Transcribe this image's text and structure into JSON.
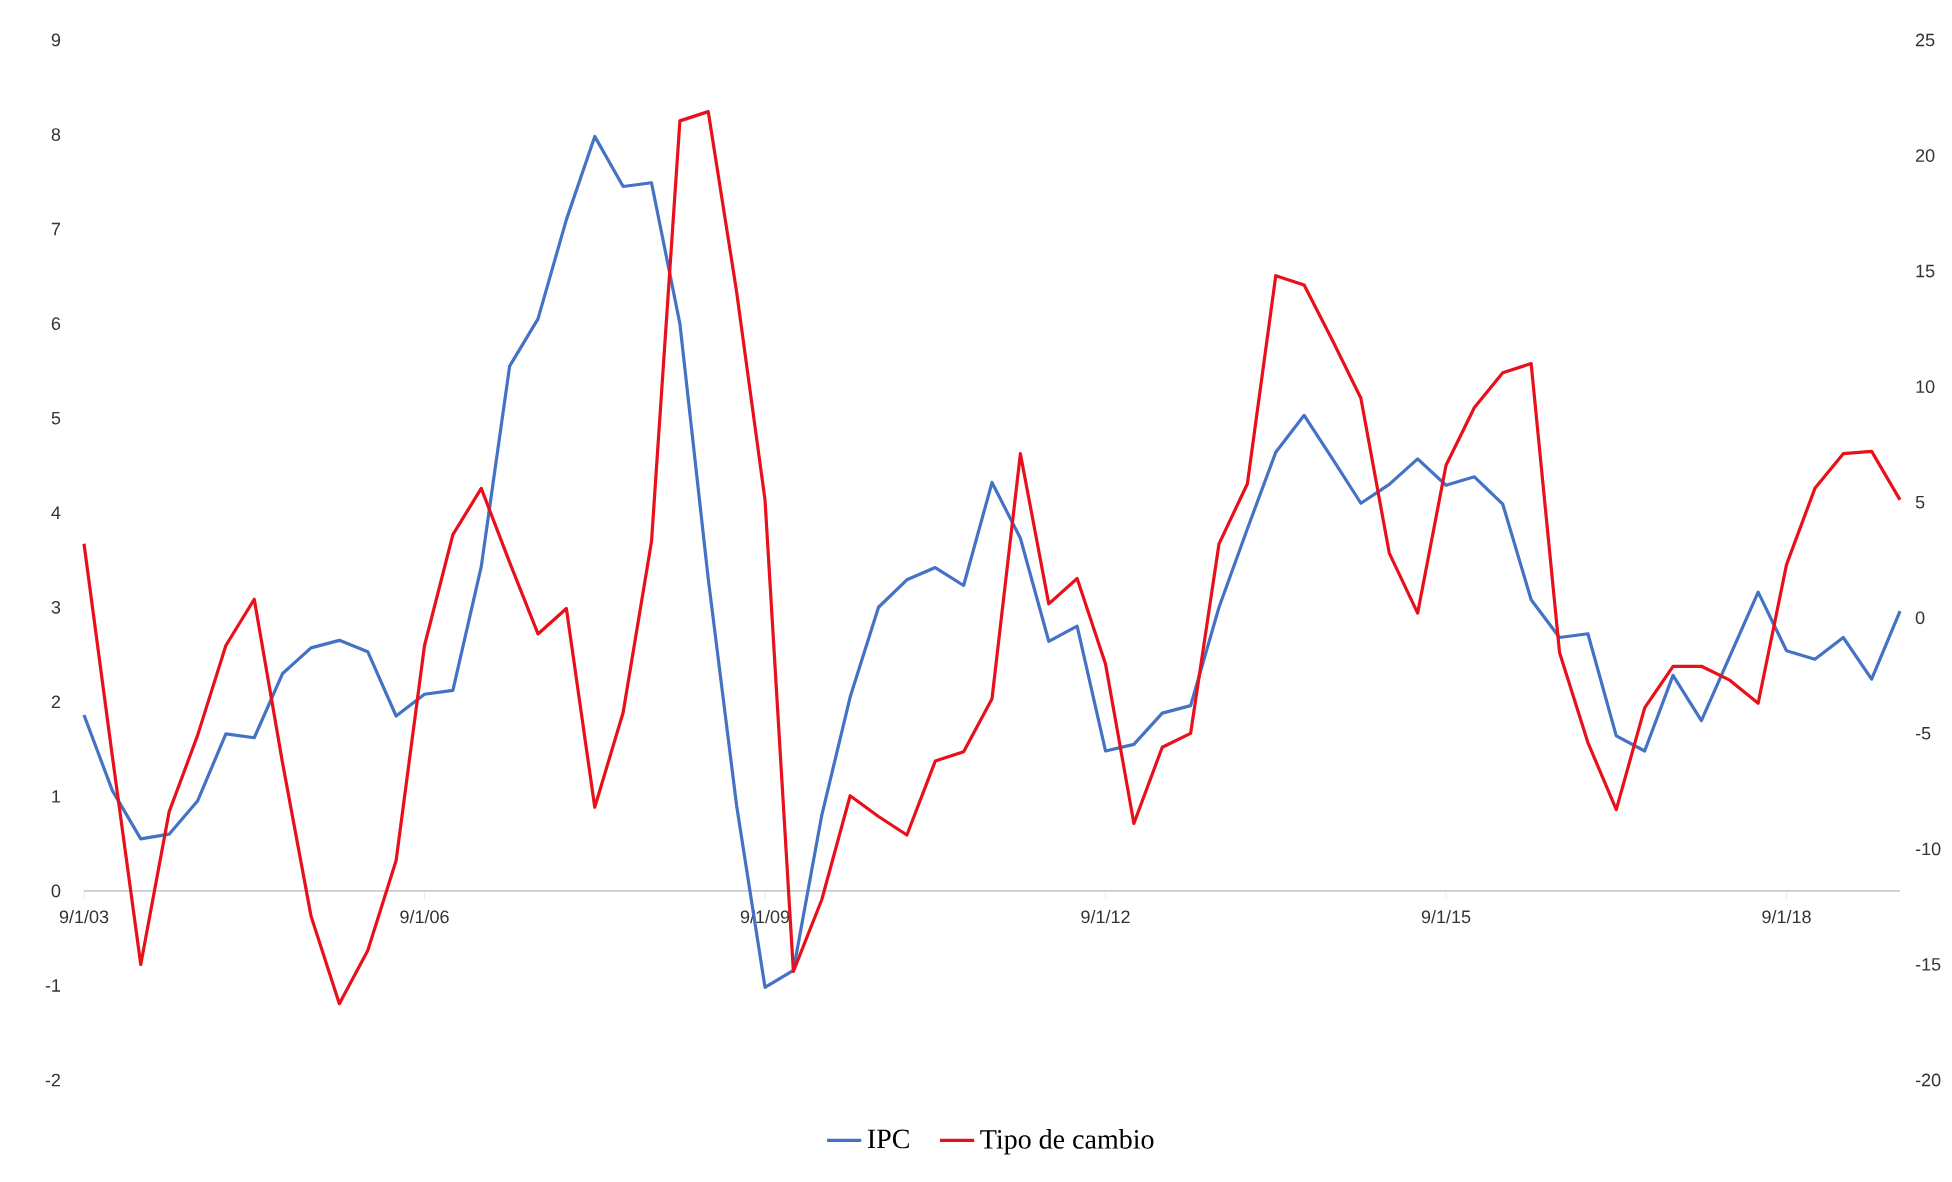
{
  "chart_data": {
    "type": "line",
    "legend": "bottom",
    "x": [
      "2003-09",
      "2003-12",
      "2004-03",
      "2004-06",
      "2004-09",
      "2004-12",
      "2005-03",
      "2005-06",
      "2005-09",
      "2005-12",
      "2006-03",
      "2006-06",
      "2006-09",
      "2006-12",
      "2007-03",
      "2007-06",
      "2007-09",
      "2007-12",
      "2008-03",
      "2008-06",
      "2008-09",
      "2008-12",
      "2009-03",
      "2009-06",
      "2009-09",
      "2009-12",
      "2010-03",
      "2010-06",
      "2010-09",
      "2010-12",
      "2011-03",
      "2011-06",
      "2011-09",
      "2011-12",
      "2012-03",
      "2012-06",
      "2012-09",
      "2012-12",
      "2013-03",
      "2013-06",
      "2013-09",
      "2013-12",
      "2014-03",
      "2014-06",
      "2014-09",
      "2014-12",
      "2015-03",
      "2015-06",
      "2015-09",
      "2015-12",
      "2016-03",
      "2016-06",
      "2016-09",
      "2016-12",
      "2017-03",
      "2017-06",
      "2017-09",
      "2017-12",
      "2018-03",
      "2018-06",
      "2018-09",
      "2018-12",
      "2019-03",
      "2019-06",
      "2019-09"
    ],
    "xlim": [
      "2003-09-01",
      "2019-09-01"
    ],
    "xticks": [
      {
        "value": "2003-09-01",
        "label": "9/1/03"
      },
      {
        "value": "2006-09-01",
        "label": "9/1/06"
      },
      {
        "value": "2009-09-01",
        "label": "9/1/09"
      },
      {
        "value": "2012-09-01",
        "label": "9/1/12"
      },
      {
        "value": "2015-09-01",
        "label": "9/1/15"
      },
      {
        "value": "2018-09-01",
        "label": "9/1/18"
      }
    ],
    "ylim": [
      -2,
      9
    ],
    "yticks": [
      -2,
      -1,
      0,
      1,
      2,
      3,
      4,
      5,
      6,
      7,
      8,
      9
    ],
    "y2lim": [
      -20,
      25
    ],
    "y2ticks": [
      -20,
      -15,
      -10,
      -5,
      0,
      5,
      10,
      15,
      20,
      25
    ],
    "series": [
      {
        "name": "IPC",
        "color": "#4472c4",
        "values": [
          1.86,
          1.06,
          0.55,
          0.6,
          0.95,
          1.66,
          1.62,
          2.3,
          2.57,
          2.65,
          2.53,
          1.85,
          2.08,
          2.12,
          3.43,
          5.55,
          6.05,
          7.1,
          7.98,
          7.45,
          7.49,
          6.0,
          3.3,
          0.9,
          -1.02,
          -0.84,
          0.8,
          2.05,
          3.0,
          3.29,
          3.42,
          3.23,
          4.32,
          3.73,
          2.64,
          2.8,
          1.48,
          1.55,
          1.88,
          1.96,
          3.0,
          3.83,
          4.64,
          5.03,
          4.57,
          4.1,
          4.3,
          4.57,
          4.29,
          4.38,
          4.09,
          3.08,
          2.68,
          2.72,
          1.64,
          1.48,
          2.28,
          1.8,
          2.48,
          3.16,
          2.54,
          2.45,
          2.68,
          2.24,
          2.96
        ]
      },
      {
        "name": "Tipo de cambio",
        "color": "#e8101a",
        "axis": "y2",
        "values": [
          3.2,
          -6.0,
          -15.0,
          -8.4,
          -5.1,
          -1.2,
          0.8,
          -6.3,
          -12.9,
          -16.7,
          -14.4,
          -10.5,
          -1.2,
          3.6,
          5.6,
          2.4,
          -0.7,
          0.4,
          -8.2,
          -4.1,
          3.3,
          21.5,
          21.9,
          14.1,
          5.1,
          -15.3,
          -12.2,
          -7.7,
          -8.6,
          -9.4,
          -6.2,
          -5.8,
          -3.5,
          7.1,
          0.6,
          1.7,
          -2.0,
          -8.9,
          -5.6,
          -5.0,
          3.2,
          5.8,
          14.8,
          14.4,
          12.0,
          9.5,
          2.8,
          0.2,
          6.6,
          9.1,
          10.6,
          11.0,
          -1.5,
          -5.4,
          -8.3,
          -3.9,
          -2.1,
          -2.1,
          -2.7,
          -3.7,
          2.3,
          5.6,
          7.1,
          7.2,
          5.1
        ]
      }
    ]
  }
}
